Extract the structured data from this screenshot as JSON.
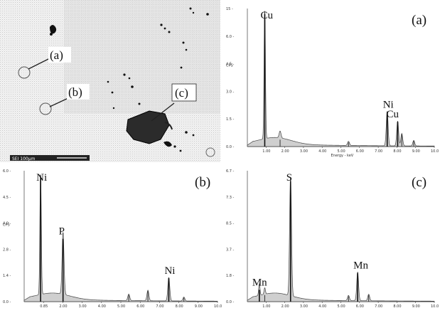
{
  "sem": {
    "labels": [
      "(a)",
      "(b)",
      "(c)"
    ],
    "scale_text": "SEI 100µm"
  },
  "chart_data": [
    {
      "id": "eds-a",
      "type": "line",
      "panel_label": "(a)",
      "ylabel": "CPS",
      "xlabel": "Energy - keV",
      "xlim": [
        0,
        10
      ],
      "x_ticks": [
        "1.00",
        "2.00",
        "3.00",
        "4.00",
        "5.00",
        "6.00",
        "7.00",
        "8.00",
        "9.00",
        "10.0"
      ],
      "y_ticks": [
        "15 -",
        "6.0 -",
        "4.5 -",
        "3.0 -",
        "1.5 -",
        "0.0 -"
      ],
      "peaks": [
        {
          "label": "Cu",
          "energy": 0.93,
          "height": 0.96
        },
        {
          "label": "Cu",
          "energy": 8.04,
          "height": 0.18
        },
        {
          "label": "Ni",
          "energy": 7.48,
          "height": 0.25
        }
      ],
      "minor_peaks": [
        {
          "energy": 1.75,
          "height": 0.05
        },
        {
          "energy": 5.41,
          "height": 0.03
        },
        {
          "energy": 8.26,
          "height": 0.09
        },
        {
          "energy": 8.9,
          "height": 0.04
        }
      ],
      "bremsstrahlung": true
    },
    {
      "id": "eds-b",
      "type": "line",
      "panel_label": "(b)",
      "ylabel": "CPS",
      "xlabel": "",
      "xlim": [
        0,
        10
      ],
      "x_ticks": [
        "0.85",
        "2.00",
        "3.00",
        "4.00",
        "5.00",
        "6.00",
        "7.00",
        "8.00",
        "9.00",
        "10.0"
      ],
      "y_ticks": [
        "6.0 -",
        "4.5 -",
        "4.0 -",
        "2.8 -",
        "1.4 -",
        "0.0 -"
      ],
      "peaks": [
        {
          "label": "Ni",
          "energy": 0.85,
          "height": 0.95
        },
        {
          "label": "P",
          "energy": 2.01,
          "height": 0.48
        },
        {
          "label": "Ni",
          "energy": 7.48,
          "height": 0.18
        }
      ],
      "minor_peaks": [
        {
          "energy": 5.41,
          "height": 0.05
        },
        {
          "energy": 6.4,
          "height": 0.08
        },
        {
          "energy": 8.26,
          "height": 0.03
        }
      ],
      "bremsstrahlung": true
    },
    {
      "id": "eds-c",
      "type": "line",
      "panel_label": "(c)",
      "ylabel": "",
      "xlabel": "",
      "xlim": [
        0,
        10
      ],
      "x_ticks": [
        "1.00",
        "2.00",
        "3.00",
        "4.00",
        "5.00",
        "6.00",
        "7.00",
        "8.00",
        "9.00",
        "10.0"
      ],
      "y_ticks": [
        "6.7 -",
        "7.3 -",
        "8.5 -",
        "3.7 -",
        "1.8 -",
        "0.0 -"
      ],
      "peaks": [
        {
          "label": "S",
          "energy": 2.31,
          "height": 0.92
        },
        {
          "label": "Mn",
          "energy": 0.64,
          "height": 0.09
        },
        {
          "label": "Mn",
          "energy": 5.9,
          "height": 0.22
        }
      ],
      "minor_peaks": [
        {
          "energy": 0.93,
          "height": 0.05
        },
        {
          "energy": 5.41,
          "height": 0.04
        },
        {
          "energy": 6.49,
          "height": 0.05
        }
      ],
      "bremsstrahlung": true
    }
  ]
}
